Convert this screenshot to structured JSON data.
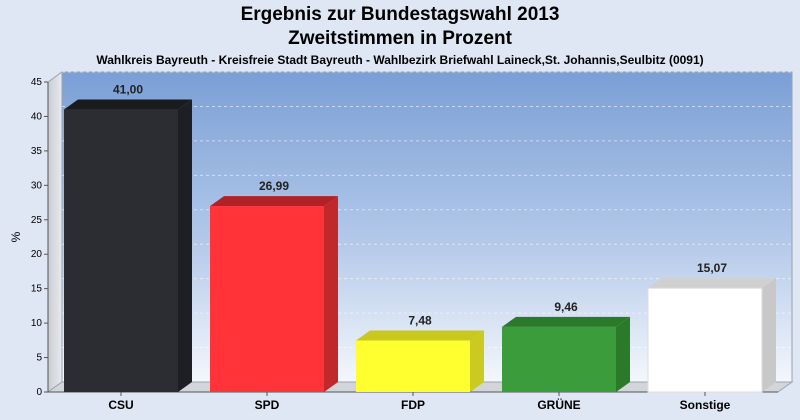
{
  "chart_data": {
    "type": "bar",
    "title": "Ergebnis zur Bundestagswahl 2013",
    "title2": "Zweitstimmen in Prozent",
    "subtitle": "Wahlkreis Bayreuth - Kreisfreie Stadt Bayreuth - Wahlbezirk Briefwahl Laineck,St. Johannis,Seulbitz (0091)",
    "ylabel": "%",
    "ylim": [
      0,
      45
    ],
    "yticks": [
      0,
      5,
      10,
      15,
      20,
      25,
      30,
      35,
      40,
      45
    ],
    "grid": true,
    "categories": [
      "CSU",
      "SPD",
      "FDP",
      "GRÜNE",
      "Sonstige"
    ],
    "values": [
      41.0,
      26.99,
      7.48,
      9.46,
      15.07
    ],
    "value_labels": [
      "41,00",
      "26,99",
      "7,48",
      "9,46",
      "15,07"
    ],
    "colors": [
      "#2b2d33",
      "#ff3338",
      "#ffff30",
      "#3a9c3a",
      "#ffffff"
    ],
    "side_colors": [
      "#1e1f24",
      "#c0282c",
      "#caca20",
      "#2a7a2a",
      "#c8c8c8"
    ],
    "top_colors": [
      "#1a1b1f",
      "#b02226",
      "#c8c81e",
      "#2a7a2a",
      "#d0d0d0"
    ]
  }
}
